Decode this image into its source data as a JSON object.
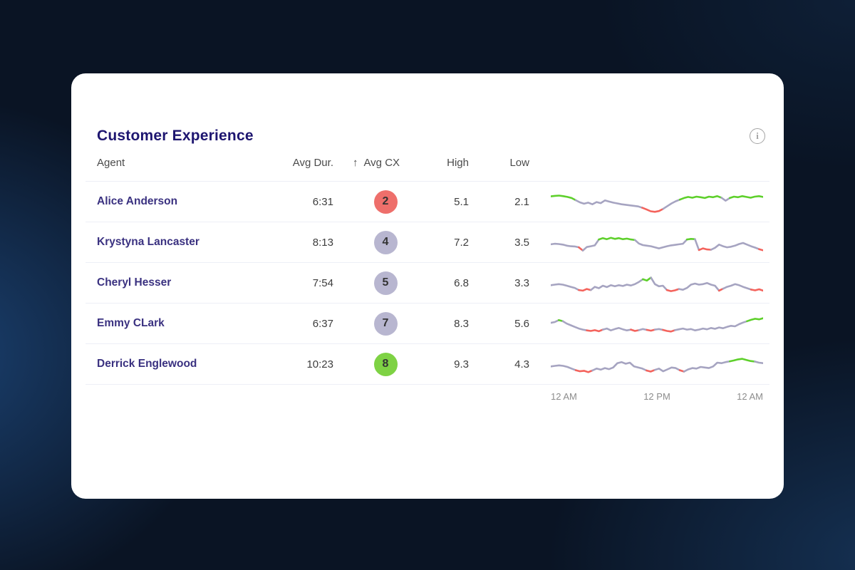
{
  "card": {
    "title": "Customer Experience"
  },
  "table": {
    "columns": {
      "agent": "Agent",
      "avg_dur": "Avg Dur.",
      "sort_arrow": "↑",
      "avg_cx": "Avg CX",
      "high": "High",
      "low": "Low"
    },
    "rows": [
      {
        "agent": "Alice Anderson",
        "avg_dur": "6:31",
        "avg_cx": "2",
        "badge_color": "#ee6f6b",
        "high": "5.1",
        "low": "2.1"
      },
      {
        "agent": "Krystyna Lancaster",
        "avg_dur": "8:13",
        "avg_cx": "4",
        "badge_color": "#b8b6d0",
        "high": "7.2",
        "low": "3.5"
      },
      {
        "agent": "Cheryl Hesser",
        "avg_dur": "7:54",
        "avg_cx": "5",
        "badge_color": "#b8b6d0",
        "high": "6.8",
        "low": "3.3"
      },
      {
        "agent": "Emmy CLark",
        "avg_dur": "6:37",
        "avg_cx": "7",
        "badge_color": "#b8b6d0",
        "high": "8.3",
        "low": "5.6"
      },
      {
        "agent": "Derrick Englewood",
        "avg_dur": "10:23",
        "avg_cx": "8",
        "badge_color": "#7ed244",
        "high": "9.3",
        "low": "4.3"
      }
    ]
  },
  "chart_data": {
    "type": "line",
    "title": "Customer Experience",
    "x_axis_labels": [
      "12 AM",
      "12 PM",
      "12 AM"
    ],
    "x_range": "24 hours",
    "legend": "none",
    "grid": false,
    "colors": {
      "high": "#5ed02b",
      "mid": "#a6a4c1",
      "low": "#f4635c"
    },
    "thresholds": {
      "green_at_or_above": 62,
      "red_at_or_below": 28
    },
    "series": [
      {
        "name": "Alice Anderson",
        "values": [
          72,
          74,
          75,
          73,
          70,
          66,
          58,
          50,
          45,
          49,
          43,
          51,
          47,
          57,
          53,
          49,
          46,
          43,
          41,
          39,
          37,
          35,
          30,
          24,
          17,
          15,
          18,
          26,
          36,
          46,
          54,
          60,
          66,
          70,
          67,
          71,
          69,
          66,
          71,
          69,
          73,
          67,
          56,
          66,
          71,
          69,
          73,
          70,
          67,
          71,
          73,
          70
        ]
      },
      {
        "name": "Krystyna Lancaster",
        "values": [
          45,
          47,
          46,
          44,
          40,
          38,
          37,
          34,
          22,
          35,
          38,
          41,
          63,
          68,
          64,
          69,
          65,
          68,
          64,
          66,
          63,
          61,
          48,
          42,
          40,
          38,
          34,
          30,
          34,
          38,
          41,
          43,
          45,
          47,
          63,
          65,
          64,
          24,
          30,
          26,
          25,
          32,
          44,
          38,
          34,
          36,
          40,
          46,
          50,
          44,
          38,
          33,
          27,
          23
        ]
      },
      {
        "name": "Cheryl Hesser",
        "values": [
          44,
          46,
          48,
          46,
          42,
          38,
          34,
          26,
          24,
          30,
          26,
          38,
          33,
          42,
          37,
          44,
          40,
          44,
          41,
          46,
          43,
          48,
          56,
          66,
          61,
          72,
          48,
          40,
          42,
          26,
          22,
          25,
          30,
          27,
          34,
          46,
          50,
          46,
          48,
          52,
          46,
          42,
          24,
          31,
          38,
          42,
          48,
          44,
          38,
          33,
          28,
          25,
          29,
          24
        ]
      },
      {
        "name": "Emmy CLark",
        "values": [
          55,
          58,
          65,
          61,
          52,
          46,
          40,
          34,
          30,
          27,
          25,
          28,
          24,
          30,
          34,
          27,
          32,
          36,
          31,
          27,
          30,
          25,
          28,
          32,
          29,
          26,
          30,
          32,
          29,
          25,
          23,
          28,
          31,
          34,
          30,
          32,
          27,
          30,
          34,
          31,
          36,
          33,
          38,
          35,
          40,
          44,
          42,
          50,
          56,
          61,
          66,
          70,
          68,
          72
        ]
      },
      {
        "name": "Derrick Englewood",
        "values": [
          44,
          46,
          48,
          46,
          42,
          36,
          30,
          26,
          28,
          23,
          29,
          36,
          32,
          38,
          34,
          40,
          56,
          60,
          54,
          58,
          44,
          40,
          36,
          29,
          25,
          31,
          36,
          26,
          33,
          40,
          38,
          30,
          25,
          33,
          38,
          36,
          42,
          40,
          38,
          44,
          58,
          56,
          60,
          63,
          66,
          70,
          72,
          68,
          64,
          62,
          58,
          56
        ]
      }
    ]
  }
}
